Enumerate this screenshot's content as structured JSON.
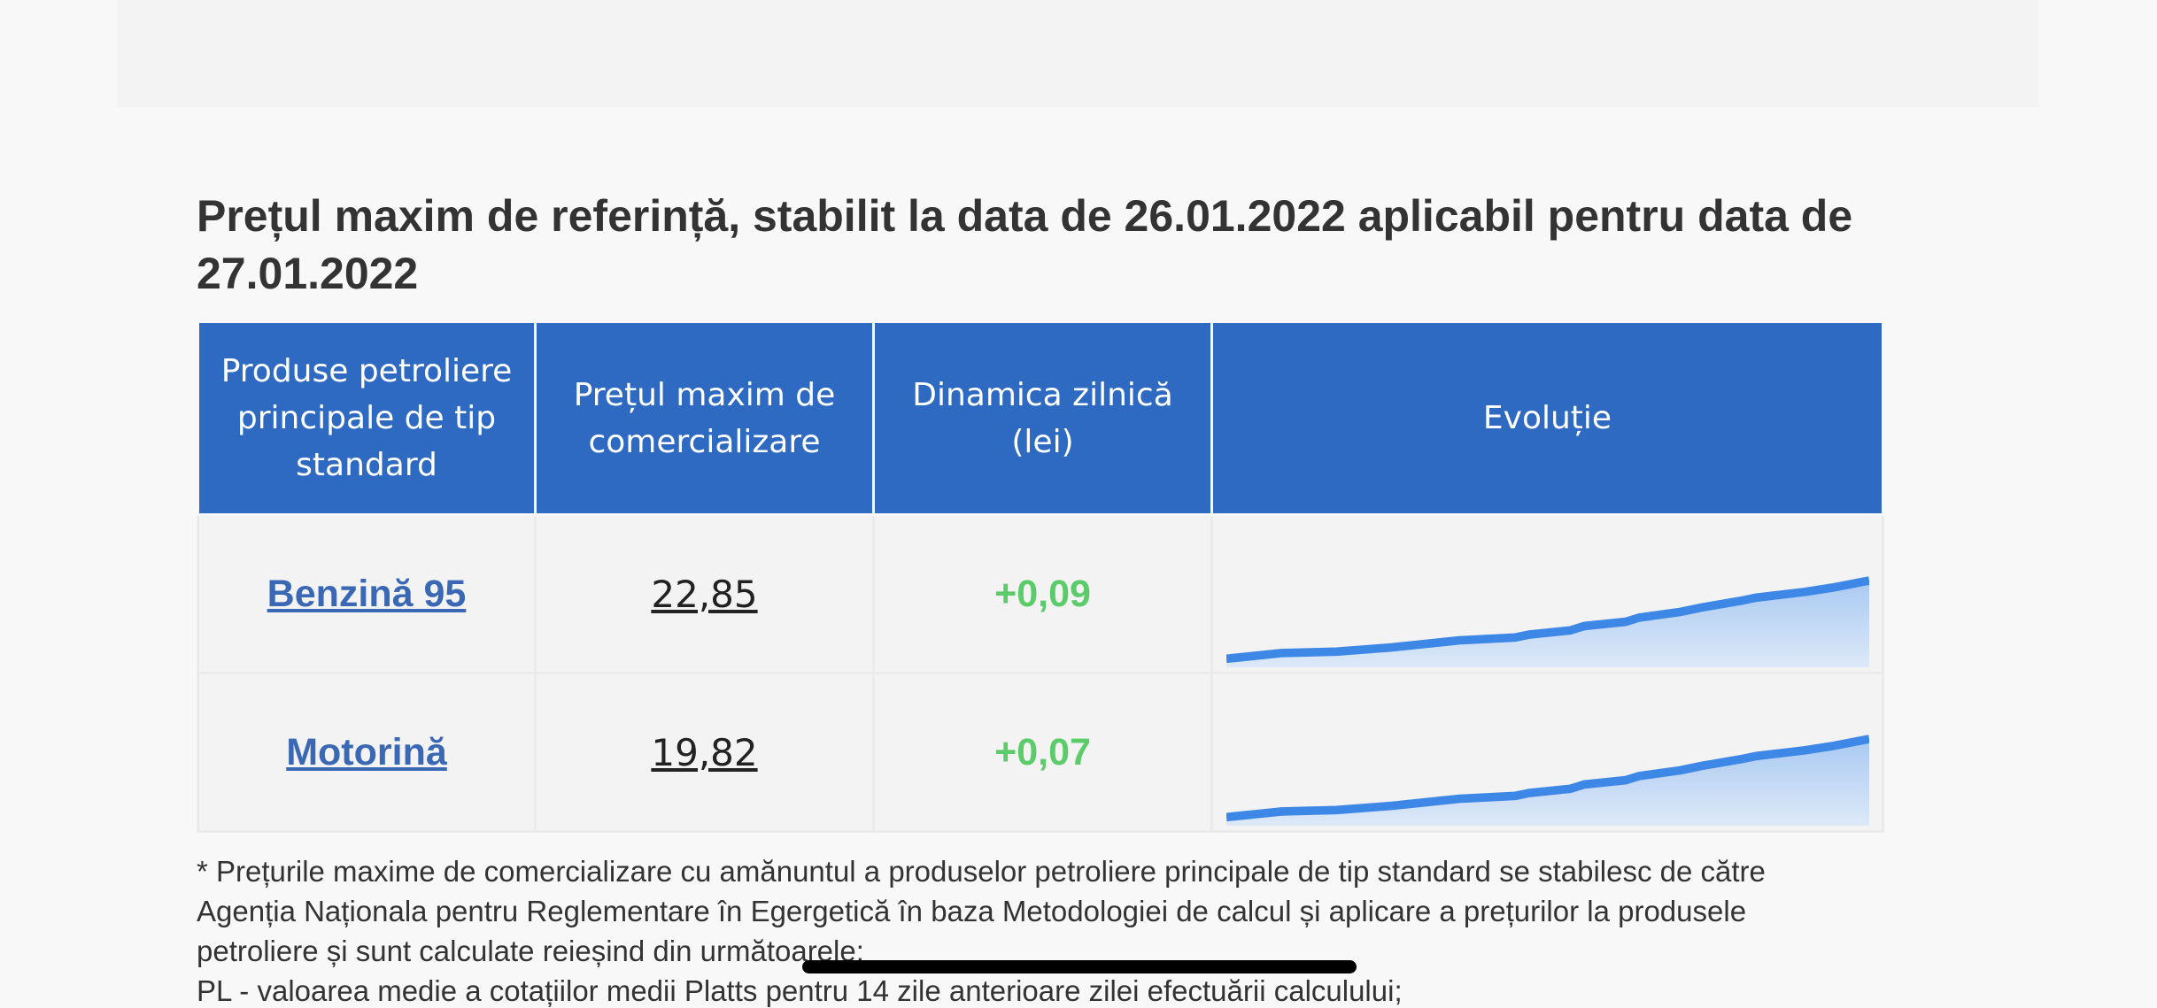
{
  "header": {
    "title": "Prețul maxim de referință, stabilit la data de 26.01.2022 aplicabil pentru data de 27.01.2022"
  },
  "table": {
    "columns": [
      "Produse petroliere principale de tip standard",
      "Prețul maxim de comercializare",
      "Dinamica zilnică (lei)",
      "Evoluție"
    ],
    "rows": [
      [
        "Benzină 95",
        "22,85",
        "+0,09"
      ],
      [
        "Motorină",
        "19,82",
        "+0,07"
      ]
    ]
  },
  "footnote": {
    "lines": [
      "* Prețurile maxime de comercializare cu amănuntul a produselor petroliere principale de tip standard se stabilesc de către",
      "Agenția Naționala pentru Reglementare în Egergetică în baza Metodologiei de calcul și aplicare a prețurilor la produsele",
      "petroliere și sunt calculate reieșind din următoarele:",
      "PL - valoarea medie a cotațiilor medii Platts pentru 14 zile anterioare zilei efectuării calculului;"
    ]
  }
}
